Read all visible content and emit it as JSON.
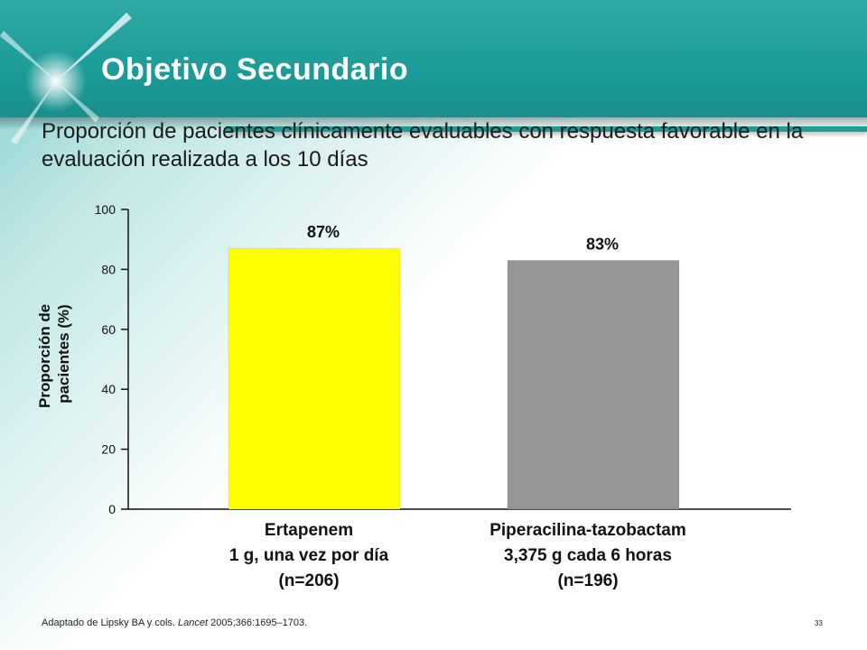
{
  "slide": {
    "title": "Objetivo Secundario",
    "subtitle": "Proporción de pacientes clínicamente evaluables con respuesta favorable en la evaluación realizada a los 10 días",
    "footer_prefix": "Adaptado de Lipsky BA y cols. ",
    "footer_journal": "Lancet",
    "footer_suffix": " 2005;366:1695–1703.",
    "page_number": "33",
    "colors": {
      "header": "#1c9b98",
      "title": "#ffffff"
    }
  },
  "chart_data": {
    "type": "bar",
    "ylabel_line1": "Proporción de",
    "ylabel_line2": "pacientes (%)",
    "ylim": [
      0,
      100
    ],
    "yticks": [
      0,
      20,
      40,
      60,
      80,
      100
    ],
    "grid": false,
    "categories": [
      {
        "lines": [
          "Ertapenem",
          "1 g, una vez por día",
          "(n=206)"
        ]
      },
      {
        "lines": [
          "Piperacilina-tazobactam",
          "3,375 g cada 6 horas",
          "(n=196)"
        ]
      }
    ],
    "values": [
      87,
      83
    ],
    "data_labels": [
      "87%",
      "83%"
    ],
    "colors": [
      "#ffff00",
      "#969696"
    ]
  }
}
